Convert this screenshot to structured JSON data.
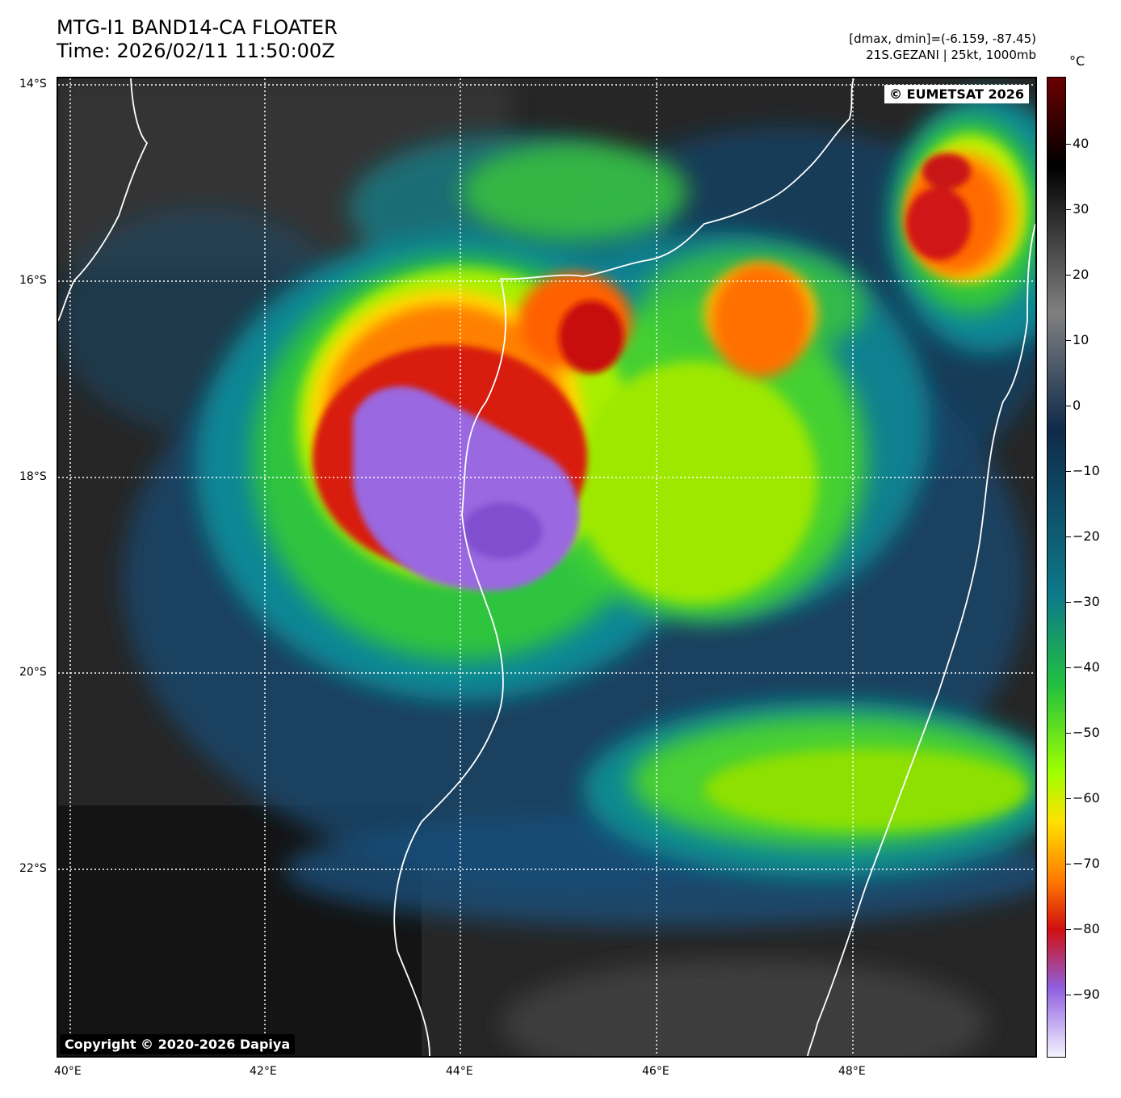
{
  "header": {
    "title_line1": "MTG-I1 BAND14-CA FLOATER",
    "title_line2": "Time: 2026/02/11 11:50:00Z",
    "meta_line1": "[dmax, dmin]=(-6.159, -87.45)",
    "meta_line2": "21S.GEZANI | 25kt, 1000mb"
  },
  "map": {
    "eumetsat_label": "© EUMETSAT 2026",
    "copyright_label": "Copyright © 2020-2026 Dapiya",
    "lat_labels": [
      "14°S",
      "16°S",
      "18°S",
      "20°S",
      "22°S"
    ],
    "lon_labels": [
      "40°E",
      "42°E",
      "44°E",
      "46°E",
      "48°E"
    ]
  },
  "colorbar": {
    "unit": "°C",
    "ticks": [
      "40",
      "30",
      "20",
      "10",
      "0",
      "−10",
      "−20",
      "−30",
      "−40",
      "−50",
      "−60",
      "−70",
      "−80",
      "−90"
    ],
    "colors": {
      "warm_top": "#6b0000",
      "black": "#000000",
      "gray": "#808080",
      "navy": "#0f2a4a",
      "teal": "#0d7a8a",
      "green": "#22c040",
      "lime": "#a0ff00",
      "yellow": "#ffe000",
      "orange": "#ff7a00",
      "red": "#d01010",
      "purple": "#9060e0",
      "white_cold": "#f4f4ff"
    }
  }
}
